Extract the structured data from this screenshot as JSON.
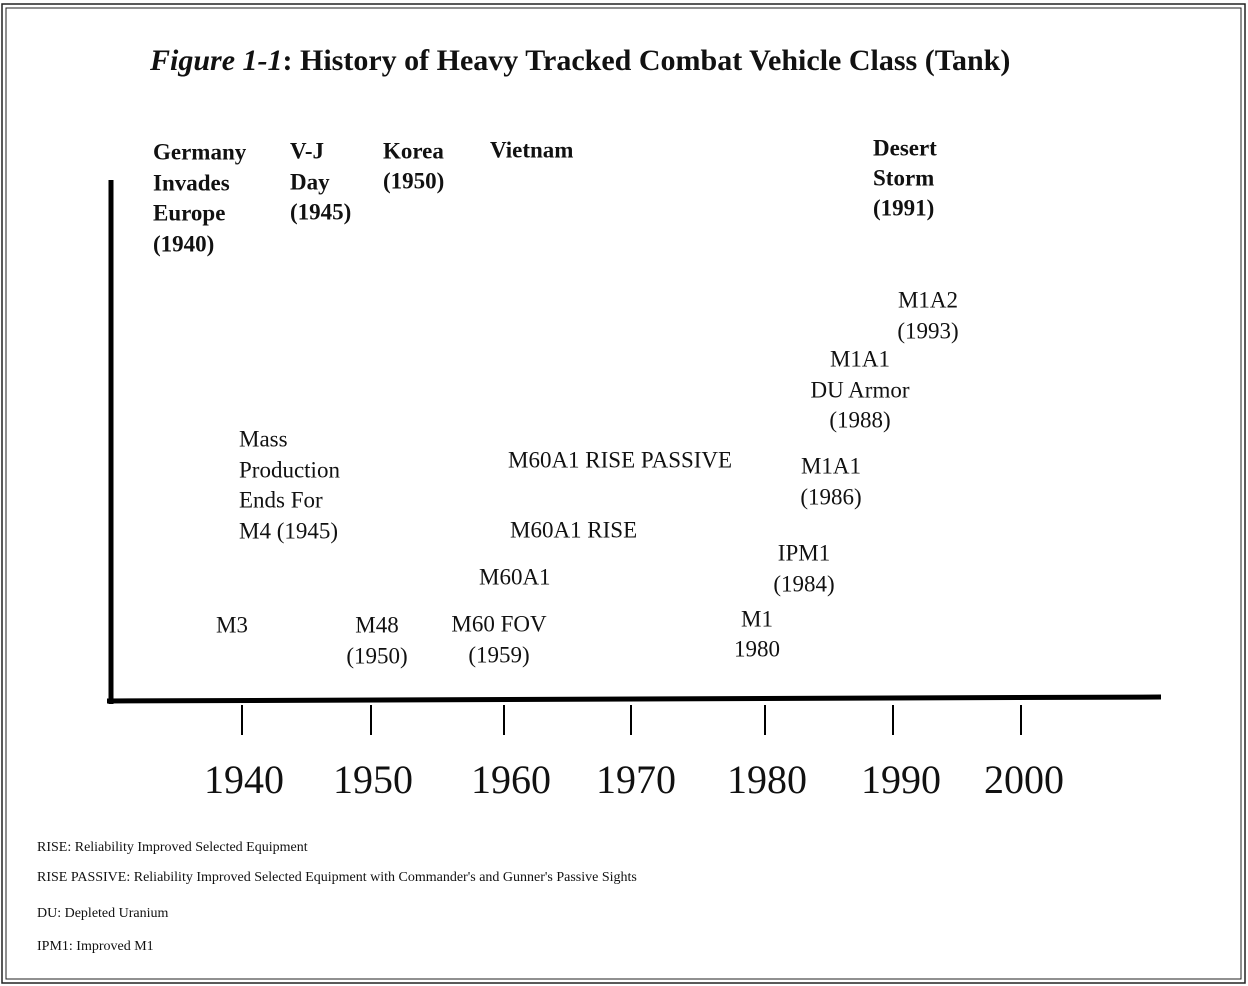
{
  "figure_number": "Figure 1-1",
  "title": ": History of Heavy Tracked Combat Vehicle Class (Tank)",
  "events": [
    {
      "lines": [
        "Germany",
        "Invades",
        "Europe",
        "(1940)"
      ]
    },
    {
      "lines": [
        "V-J",
        "Day",
        "(1945)"
      ]
    },
    {
      "lines": [
        "Korea",
        "(1950)"
      ]
    },
    {
      "lines": [
        "Vietnam"
      ]
    },
    {
      "lines": [
        "Desert",
        "Storm",
        "(1991)"
      ]
    }
  ],
  "vehicles": [
    {
      "lines": [
        "M1A2",
        "(1993)"
      ]
    },
    {
      "lines": [
        "M1A1",
        "DU Armor",
        "(1988)"
      ]
    },
    {
      "lines": [
        "Mass",
        "Production",
        "Ends For",
        "M4 (1945)"
      ]
    },
    {
      "lines": [
        "M60A1 RISE PASSIVE"
      ]
    },
    {
      "lines": [
        "M1A1",
        "(1986)"
      ]
    },
    {
      "lines": [
        "M60A1 RISE"
      ]
    },
    {
      "lines": [
        "IPM1",
        "(1984)"
      ]
    },
    {
      "lines": [
        "M60A1"
      ]
    },
    {
      "lines": [
        "M3"
      ]
    },
    {
      "lines": [
        "M48",
        "(1950)"
      ]
    },
    {
      "lines": [
        "M60 FOV",
        "(1959)"
      ]
    },
    {
      "lines": [
        "M1",
        "1980"
      ]
    }
  ],
  "axis_years": [
    "1940",
    "1950",
    "1960",
    "1970",
    "1980",
    "1990",
    "2000"
  ],
  "notes": [
    "RISE:  Reliability Improved Selected Equipment",
    "RISE PASSIVE:  Reliability Improved Selected Equipment with Commander's and Gunner's Passive Sights",
    "DU:  Depleted Uranium",
    "IPM1:  Improved M1"
  ]
}
